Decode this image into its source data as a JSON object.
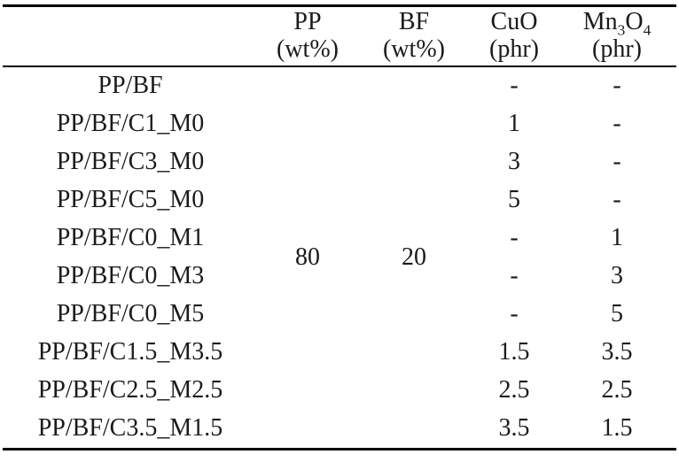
{
  "colors": {
    "background": "#ffffff",
    "text": "#1a1a1a",
    "rule": "#000000"
  },
  "table": {
    "headers": {
      "sample": "",
      "pp": {
        "line1": "PP",
        "line2": "(wt%)"
      },
      "bf": {
        "line1": "BF",
        "line2": "(wt%)"
      },
      "cuo": {
        "line1": "CuO",
        "line2": "(phr)"
      },
      "mn": {
        "f1": "Mn",
        "sub1": "3",
        "f2": "O",
        "sub2": "4",
        "line2": "(phr)"
      }
    },
    "merged": {
      "pp_value": "80",
      "bf_value": "20"
    },
    "rows": [
      {
        "name": "PP/BF",
        "cuo": "-",
        "mn": "-"
      },
      {
        "name": "PP/BF/C1_M0",
        "cuo": "1",
        "mn": "-"
      },
      {
        "name": "PP/BF/C3_M0",
        "cuo": "3",
        "mn": "-"
      },
      {
        "name": "PP/BF/C5_M0",
        "cuo": "5",
        "mn": "-"
      },
      {
        "name": "PP/BF/C0_M1",
        "cuo": "-",
        "mn": "1"
      },
      {
        "name": "PP/BF/C0_M3",
        "cuo": "-",
        "mn": "3"
      },
      {
        "name": "PP/BF/C0_M5",
        "cuo": "-",
        "mn": "5"
      },
      {
        "name": "PP/BF/C1.5_M3.5",
        "cuo": "1.5",
        "mn": "3.5"
      },
      {
        "name": "PP/BF/C2.5_M2.5",
        "cuo": "2.5",
        "mn": "2.5"
      },
      {
        "name": "PP/BF/C3.5_M1.5",
        "cuo": "3.5",
        "mn": "1.5"
      }
    ]
  }
}
